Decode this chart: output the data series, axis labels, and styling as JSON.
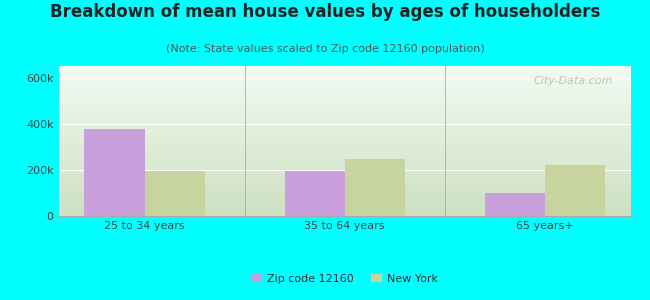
{
  "title": "Breakdown of mean house values by ages of householders",
  "subtitle": "(Note: State values scaled to Zip code 12160 population)",
  "categories": [
    "25 to 34 years",
    "35 to 64 years",
    "65 years+"
  ],
  "series": [
    {
      "name": "Zip code 12160",
      "values": [
        375000,
        195000,
        100000
      ],
      "color": "#c9a0dc"
    },
    {
      "name": "New York",
      "values": [
        195000,
        248000,
        220000
      ],
      "color": "#c8d4a0"
    }
  ],
  "ylim": [
    0,
    650000
  ],
  "yticks": [
    0,
    200000,
    400000,
    600000
  ],
  "ytick_labels": [
    "0",
    "200k",
    "400k",
    "600k"
  ],
  "bar_width": 0.3,
  "background_color": "#00ffff",
  "plot_bg_topleft": "#e8f0e0",
  "plot_bg_topright": "#f8fffc",
  "plot_bg_bottomleft": "#d0e8c0",
  "plot_bg_bottomright": "#e8f4e8",
  "watermark": "City-Data.com",
  "title_fontsize": 12,
  "subtitle_fontsize": 8,
  "tick_fontsize": 8,
  "legend_fontsize": 8
}
